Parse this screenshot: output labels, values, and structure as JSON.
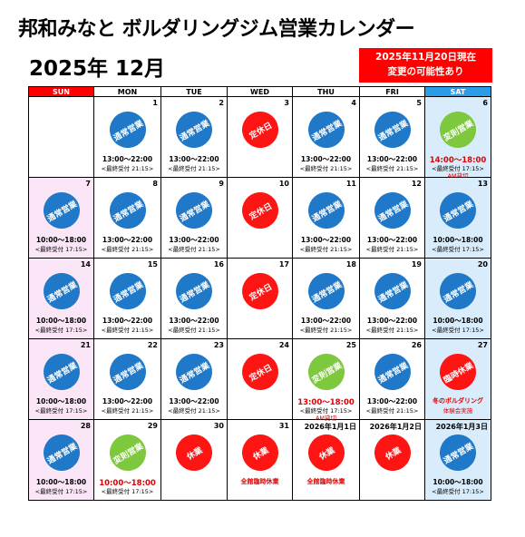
{
  "title": "邦和みなと ボルダリングジム営業カレンダー",
  "month": "2025年 12月",
  "notice": {
    "line1": "2025年11月20日現在",
    "line2": "変更の可能性あり"
  },
  "colors": {
    "sat_header": "#2b9de8",
    "sun_header": "#ff0000",
    "sat_bg": "#d8ecfb",
    "sun_bg": "#fbe6f7",
    "regular": "#1f78c8",
    "closed": "#ff1414",
    "changed": "#7dc83c"
  },
  "weekdays": [
    "SUN",
    "MON",
    "TUE",
    "WED",
    "THU",
    "FRI",
    "SAT"
  ],
  "weeks": [
    [
      {
        "num": "",
        "status": "",
        "hours": "",
        "last": ""
      },
      {
        "num": "1",
        "status": "通常営業",
        "kind": "regular",
        "hours": "13:00～22:00",
        "last": "<最終受付 21:15>"
      },
      {
        "num": "2",
        "status": "通常営業",
        "kind": "regular",
        "hours": "13:00～22:00",
        "last": "<最終受付 21:15>"
      },
      {
        "num": "3",
        "status": "定休日",
        "kind": "closed",
        "hours": "",
        "last": ""
      },
      {
        "num": "4",
        "status": "通常営業",
        "kind": "regular",
        "hours": "13:00～22:00",
        "last": "<最終受付 21:15>"
      },
      {
        "num": "5",
        "status": "通常営業",
        "kind": "regular",
        "hours": "13:00～22:00",
        "last": "<最終受付 21:15>"
      },
      {
        "num": "6",
        "status": "変則営業",
        "kind": "changed",
        "hours": "14:00～18:00",
        "last": "<最終受付 17:15>",
        "extra": "AM貸切"
      }
    ],
    [
      {
        "num": "7",
        "status": "通常営業",
        "kind": "regular",
        "hours": "10:00～18:00",
        "last": "<最終受付 17:15>"
      },
      {
        "num": "8",
        "status": "通常営業",
        "kind": "regular",
        "hours": "13:00～22:00",
        "last": "<最終受付 21:15>"
      },
      {
        "num": "9",
        "status": "通常営業",
        "kind": "regular",
        "hours": "13:00～22:00",
        "last": "<最終受付 21:15>"
      },
      {
        "num": "10",
        "status": "定休日",
        "kind": "closed",
        "hours": "",
        "last": ""
      },
      {
        "num": "11",
        "status": "通常営業",
        "kind": "regular",
        "hours": "13:00～22:00",
        "last": "<最終受付 21:15>"
      },
      {
        "num": "12",
        "status": "通常営業",
        "kind": "regular",
        "hours": "13:00～22:00",
        "last": "<最終受付 21:15>"
      },
      {
        "num": "13",
        "status": "通常営業",
        "kind": "regular",
        "hours": "10:00～18:00",
        "last": "<最終受付 17:15>"
      }
    ],
    [
      {
        "num": "14",
        "status": "通常営業",
        "kind": "regular",
        "hours": "10:00～18:00",
        "last": "<最終受付 17:15>"
      },
      {
        "num": "15",
        "status": "通常営業",
        "kind": "regular",
        "hours": "13:00～22:00",
        "last": "<最終受付 21:15>"
      },
      {
        "num": "16",
        "status": "通常営業",
        "kind": "regular",
        "hours": "13:00～22:00",
        "last": "<最終受付 21:15>"
      },
      {
        "num": "17",
        "status": "定休日",
        "kind": "closed",
        "hours": "",
        "last": ""
      },
      {
        "num": "18",
        "status": "通常営業",
        "kind": "regular",
        "hours": "13:00～22:00",
        "last": "<最終受付 21:15>"
      },
      {
        "num": "19",
        "status": "通常営業",
        "kind": "regular",
        "hours": "13:00～22:00",
        "last": "<最終受付 21:15>"
      },
      {
        "num": "20",
        "status": "通常営業",
        "kind": "regular",
        "hours": "10:00～18:00",
        "last": "<最終受付 17:15>"
      }
    ],
    [
      {
        "num": "21",
        "status": "通常営業",
        "kind": "regular",
        "hours": "10:00～18:00",
        "last": "<最終受付 17:15>"
      },
      {
        "num": "22",
        "status": "通常営業",
        "kind": "regular",
        "hours": "13:00～22:00",
        "last": "<最終受付 21:15>"
      },
      {
        "num": "23",
        "status": "通常営業",
        "kind": "regular",
        "hours": "13:00～22:00",
        "last": "<最終受付 21:15>"
      },
      {
        "num": "24",
        "status": "定休日",
        "kind": "closed",
        "hours": "",
        "last": ""
      },
      {
        "num": "25",
        "status": "変則営業",
        "kind": "changed",
        "hours": "13:00～18:00",
        "last": "<最終受付 17:15>",
        "extra": "AM貸切"
      },
      {
        "num": "26",
        "status": "通常営業",
        "kind": "regular",
        "hours": "13:00～22:00",
        "last": "<最終受付 21:15>"
      },
      {
        "num": "27",
        "status": "臨時休業",
        "kind": "closed",
        "note": "冬のボルダリング",
        "note2": "体験会実施"
      }
    ],
    [
      {
        "num": "28",
        "status": "通常営業",
        "kind": "regular",
        "hours": "10:00～18:00",
        "last": "<最終受付 17:15>"
      },
      {
        "num": "29",
        "status": "変則営業",
        "kind": "changed",
        "hours": "10:00～18:00",
        "last": "<最終受付 17:15>"
      },
      {
        "num": "30",
        "status": "休業",
        "kind": "closed",
        "hours": "",
        "last": ""
      },
      {
        "num": "31",
        "status": "休業",
        "kind": "closed",
        "note": "全館臨時休業"
      },
      {
        "num": "2026年1月1日",
        "status": "休業",
        "kind": "closed",
        "note": "全館臨時休業"
      },
      {
        "num": "2026年1月2日",
        "status": "休業",
        "kind": "closed",
        "hours": "",
        "last": ""
      },
      {
        "num": "2026年1月3日",
        "status": "通常営業",
        "kind": "regular",
        "hours": "10:00～18:00",
        "last": "<最終受付 17:15>"
      }
    ]
  ]
}
